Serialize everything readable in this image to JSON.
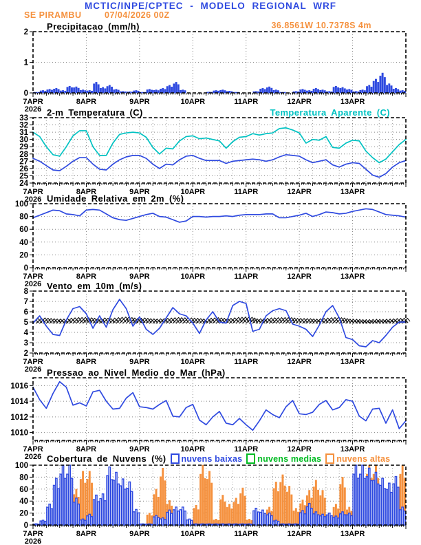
{
  "header": {
    "title": "MCTIC/INPE/CPTEC - MODELO REGIONAL WRF",
    "station": "SE PIRAMBU",
    "run": "07/04/2026 00Z",
    "location": "36.8561W 10.7378S 4m"
  },
  "x_axis": {
    "day_labels": [
      "7APR",
      "8APR",
      "9APR",
      "10APR",
      "11APR",
      "12APR",
      "13APR"
    ],
    "year_label": "2026",
    "hours_total": 168,
    "step_hours": 3
  },
  "colors": {
    "blue": "#2f4ae0",
    "cyan": "#00c2c2",
    "orange": "#f5913e",
    "green": "#00bb22",
    "black": "#000000",
    "grid": "#848484"
  },
  "chart_data": [
    {
      "id": "precip",
      "type": "bar",
      "title": "Precipitacao (mm/h)",
      "ylabel": "mm/h",
      "ylim": [
        0,
        2
      ],
      "yticks": [
        0,
        1,
        2
      ],
      "series": [
        {
          "name": "precipitacao",
          "color": "blue",
          "values": [
            0.02,
            0.08,
            0.12,
            0.15,
            0.08,
            0.22,
            0.2,
            0.1,
            0.08,
            0.35,
            0.18,
            0.25,
            0.12,
            0.05,
            0.04,
            0.08,
            0.02,
            0.12,
            0.1,
            0.15,
            0.25,
            0.35,
            0.1,
            0,
            0,
            0,
            0.03,
            0.08,
            0.1,
            0.06,
            0.02,
            0,
            0,
            0.05,
            0.15,
            0.2,
            0.1,
            0.02,
            0,
            0.05,
            0.12,
            0.08,
            0.15,
            0.1,
            0.05,
            0.22,
            0.18,
            0.12,
            0.05,
            0.1,
            0.25,
            0.45,
            0.65,
            0.3,
            0.15,
            0.08
          ]
        }
      ]
    },
    {
      "id": "temp",
      "type": "line",
      "title": "2-m Temperatura (C)",
      "title_right": "Temperatura Aparente (C)",
      "grid6h": true,
      "ylim": [
        24,
        33
      ],
      "yticks": [
        24,
        25,
        26,
        27,
        28,
        29,
        30,
        31,
        32,
        33
      ],
      "series": [
        {
          "name": "Temperatura Aparente (C)",
          "color": "cyan",
          "values": [
            31,
            30.4,
            29,
            27.9,
            27.7,
            29,
            30.5,
            31.2,
            31.2,
            29,
            27.8,
            27.8,
            29.5,
            30.7,
            30.9,
            31,
            30.9,
            30.3,
            28.9,
            28,
            28.8,
            28.7,
            29.8,
            30.4,
            30.5,
            30.1,
            30.2,
            30,
            29.8,
            28.8,
            29.7,
            30.3,
            30.4,
            30.8,
            30.6,
            30.8,
            30.9,
            31.5,
            31.6,
            31.3,
            30.9,
            29.5,
            30,
            29.9,
            30.4,
            28.9,
            28.8,
            29.5,
            29.9,
            29.8,
            28.4,
            27.5,
            26.8,
            27.3,
            28.3,
            29.3,
            30
          ]
        },
        {
          "name": "2-m Temperatura (C)",
          "color": "blue",
          "values": [
            27.4,
            27,
            26.4,
            25.8,
            25.7,
            26.3,
            27,
            27.5,
            27.5,
            26.6,
            25.9,
            25.8,
            26.6,
            27.2,
            27.6,
            27.8,
            27.8,
            27.4,
            26.6,
            26,
            26.6,
            26.5,
            27.2,
            27.7,
            27.8,
            27.4,
            27.1,
            27.1,
            27.1,
            26.7,
            27,
            27.1,
            27.2,
            27.3,
            27.2,
            27,
            27.2,
            27.6,
            27.9,
            27.8,
            27.7,
            27.2,
            26.8,
            27,
            27.2,
            26.5,
            26.2,
            26.6,
            26.8,
            26.7,
            25.9,
            25.1,
            24.8,
            25.3,
            26.2,
            26.8,
            27.1
          ]
        }
      ]
    },
    {
      "id": "humidity",
      "type": "line",
      "title": "Umidade Relativa em 2m (%)",
      "ylim": [
        0,
        100
      ],
      "yticks": [
        0,
        20,
        40,
        60,
        80,
        100
      ],
      "series": [
        {
          "name": "umidade relativa",
          "color": "blue",
          "values": [
            78,
            82,
            86,
            90,
            89,
            84,
            83,
            81,
            90,
            91,
            90,
            84,
            78,
            75,
            74,
            77,
            80,
            83,
            85,
            80,
            79,
            75,
            71,
            73,
            80,
            80,
            79,
            80,
            80,
            81,
            80,
            82,
            83,
            83,
            83,
            84,
            84,
            78,
            78,
            80,
            82,
            85,
            80,
            83,
            87,
            86,
            84,
            85,
            88,
            90,
            92,
            91,
            87,
            83,
            82,
            81,
            79
          ]
        }
      ]
    },
    {
      "id": "wind",
      "type": "line",
      "title": "Vento em 10m (m/s)",
      "barbs": true,
      "barb_level": 5,
      "ylim": [
        2,
        8
      ],
      "yticks": [
        2,
        3,
        4,
        5,
        6,
        7,
        8
      ],
      "series": [
        {
          "name": "velocidade do vento",
          "color": "blue",
          "values": [
            4.9,
            5.6,
            4.6,
            3.8,
            3.7,
            5.2,
            6.3,
            6.5,
            5.8,
            4.4,
            5.6,
            4.5,
            6.2,
            7.2,
            6.3,
            4.6,
            5.5,
            4.3,
            3.8,
            4.4,
            5.4,
            6.4,
            5.8,
            5.6,
            4.9,
            3.9,
            5.2,
            6,
            5,
            4.9,
            6.6,
            7,
            6.8,
            4.1,
            4.3,
            5.6,
            6.1,
            6.3,
            6.1,
            4.8,
            4.6,
            4.3,
            3.6,
            4.7,
            6,
            6.6,
            5.4,
            3.5,
            3.3,
            2.7,
            2.6,
            3.2,
            3,
            3.7,
            4.5,
            5,
            5
          ]
        }
      ]
    },
    {
      "id": "pressure",
      "type": "line",
      "title": "Pressao ao Nivel Medio do Mar (hPa)",
      "ylim": [
        1009,
        1017
      ],
      "yticks": [
        1010,
        1012,
        1014,
        1016
      ],
      "series": [
        {
          "name": "pressao",
          "color": "blue",
          "values": [
            1015.8,
            1014.2,
            1013.1,
            1015,
            1016.5,
            1015.8,
            1013.5,
            1013.8,
            1013.4,
            1015.2,
            1015.4,
            1014,
            1013,
            1013.1,
            1014.4,
            1015.1,
            1013.3,
            1013.2,
            1013,
            1013.6,
            1014.1,
            1012.1,
            1012,
            1013.2,
            1013.6,
            1011.6,
            1011,
            1012,
            1012.7,
            1011.2,
            1011,
            1011.8,
            1011,
            1010.3,
            1011.5,
            1012.9,
            1012.3,
            1011.9,
            1013.3,
            1014.1,
            1012.4,
            1012.3,
            1012.6,
            1013.6,
            1014.1,
            1012.9,
            1013.2,
            1014.2,
            1014,
            1012.1,
            1011.5,
            1013,
            1013.1,
            1011.2,
            1012.9,
            1010.5,
            1011.5
          ]
        }
      ]
    },
    {
      "id": "clouds",
      "type": "bar",
      "title": "Cobertura de Nuvens (%)",
      "grid6h": true,
      "ylim": [
        0,
        100
      ],
      "yticks": [
        0,
        20,
        40,
        60,
        80,
        100
      ],
      "legend": [
        {
          "label": "nuvens baixas",
          "color": "blue"
        },
        {
          "label": "nuvens medias",
          "color": "green"
        },
        {
          "label": "nuvens altas",
          "color": "orange"
        }
      ],
      "series": [
        {
          "name": "nuvens altas",
          "color": "orange",
          "values": [
            0,
            0,
            0,
            0,
            0,
            7,
            60,
            90,
            90,
            30,
            40,
            46,
            5,
            0,
            16,
            17,
            0,
            20,
            60,
            95,
            41,
            0,
            0,
            10,
            33,
            100,
            90,
            10,
            50,
            35,
            45,
            62,
            10,
            0,
            12,
            30,
            72,
            84,
            65,
            28,
            42,
            58,
            75,
            58,
            15,
            35,
            80,
            30,
            88,
            100,
            100,
            100,
            75,
            15,
            45,
            100
          ]
        },
        {
          "name": "nuvens medias",
          "color": "green",
          "values": [
            0,
            0,
            0,
            0,
            0,
            0,
            0,
            0,
            0,
            0,
            0,
            0,
            0,
            0,
            0,
            0,
            0,
            0,
            0,
            0,
            0,
            0,
            0,
            0,
            0,
            0,
            0,
            0,
            0,
            0,
            0,
            0,
            0,
            0,
            0,
            0,
            0,
            0,
            0,
            0,
            0,
            0,
            0,
            0,
            0,
            0,
            0,
            0,
            0,
            18,
            10,
            0,
            0,
            0,
            0,
            0
          ]
        },
        {
          "name": "nuvens baixas",
          "color": "blue",
          "hollow": true,
          "values": [
            2,
            8,
            35,
            78,
            100,
            100,
            45,
            10,
            18,
            50,
            52,
            97,
            88,
            77,
            72,
            26,
            2,
            2,
            16,
            12,
            25,
            30,
            30,
            10,
            2,
            2,
            2,
            2,
            2,
            2,
            2,
            2,
            2,
            28,
            25,
            20,
            8,
            2,
            2,
            2,
            24,
            36,
            22,
            18,
            20,
            15,
            22,
            20,
            100,
            100,
            95,
            88,
            78,
            70,
            81,
            30
          ]
        }
      ]
    }
  ]
}
